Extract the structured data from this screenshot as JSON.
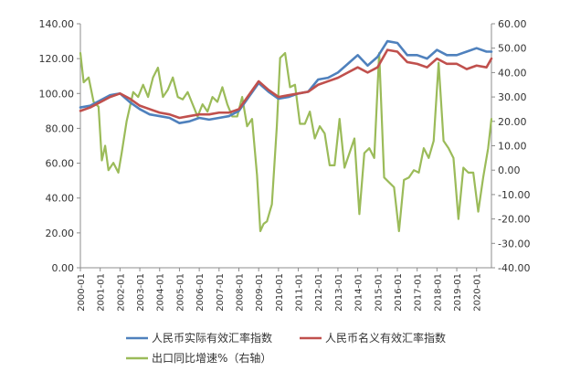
{
  "chart_data": {
    "type": "line",
    "x_start": "2000-01",
    "x_end": "2020-10",
    "x_tick_labels": [
      "2000-01",
      "2001-01",
      "2002-01",
      "2003-01",
      "2004-01",
      "2005-01",
      "2006-01",
      "2007-01",
      "2008-01",
      "2009-01",
      "2010-01",
      "2011-01",
      "2012-01",
      "2013-01",
      "2014-01",
      "2015-01",
      "2016-01",
      "2017-01",
      "2018-01",
      "2019-01",
      "2020-01"
    ],
    "left_axis": {
      "min": 0,
      "max": 140,
      "step": 20,
      "tick_labels": [
        "0.00",
        "20.00",
        "40.00",
        "60.00",
        "80.00",
        "100.00",
        "120.00",
        "140.00"
      ]
    },
    "right_axis": {
      "min": -40,
      "max": 60,
      "step": 10,
      "tick_labels": [
        "-40.00",
        "-30.00",
        "-20.00",
        "-10.00",
        "0.00",
        "10.00",
        "20.00",
        "30.00",
        "40.00",
        "50.00",
        "60.00"
      ]
    },
    "grid": false,
    "legend_position": "bottom",
    "series": [
      {
        "name": "人民币实际有效汇率指数",
        "axis": "left",
        "color": "#4f81bd",
        "points": [
          [
            "2000-01",
            92
          ],
          [
            "2000-07",
            93
          ],
          [
            "2001-01",
            96
          ],
          [
            "2001-07",
            99
          ],
          [
            "2002-01",
            100
          ],
          [
            "2002-07",
            95
          ],
          [
            "2003-01",
            91
          ],
          [
            "2003-07",
            88
          ],
          [
            "2004-01",
            87
          ],
          [
            "2004-07",
            86
          ],
          [
            "2005-01",
            83
          ],
          [
            "2005-07",
            84
          ],
          [
            "2006-01",
            86
          ],
          [
            "2006-07",
            85
          ],
          [
            "2007-01",
            86
          ],
          [
            "2007-07",
            87
          ],
          [
            "2008-01",
            90
          ],
          [
            "2008-07",
            98
          ],
          [
            "2009-01",
            106
          ],
          [
            "2009-07",
            101
          ],
          [
            "2010-01",
            97
          ],
          [
            "2010-07",
            98
          ],
          [
            "2011-01",
            100
          ],
          [
            "2011-07",
            101
          ],
          [
            "2012-01",
            108
          ],
          [
            "2012-07",
            109
          ],
          [
            "2013-01",
            112
          ],
          [
            "2013-07",
            117
          ],
          [
            "2014-01",
            122
          ],
          [
            "2014-07",
            116
          ],
          [
            "2015-01",
            121
          ],
          [
            "2015-07",
            130
          ],
          [
            "2016-01",
            129
          ],
          [
            "2016-07",
            122
          ],
          [
            "2017-01",
            122
          ],
          [
            "2017-07",
            120
          ],
          [
            "2018-01",
            125
          ],
          [
            "2018-07",
            122
          ],
          [
            "2019-01",
            122
          ],
          [
            "2019-07",
            124
          ],
          [
            "2020-01",
            126
          ],
          [
            "2020-07",
            124
          ],
          [
            "2020-10",
            124
          ]
        ]
      },
      {
        "name": "人民币名义有效汇率指数",
        "axis": "left",
        "color": "#c0504d",
        "points": [
          [
            "2000-01",
            90
          ],
          [
            "2000-07",
            92
          ],
          [
            "2001-01",
            95
          ],
          [
            "2001-07",
            98
          ],
          [
            "2002-01",
            100
          ],
          [
            "2002-07",
            97
          ],
          [
            "2003-01",
            93
          ],
          [
            "2003-07",
            91
          ],
          [
            "2004-01",
            89
          ],
          [
            "2004-07",
            88
          ],
          [
            "2005-01",
            86
          ],
          [
            "2005-07",
            87
          ],
          [
            "2006-01",
            88
          ],
          [
            "2006-07",
            88
          ],
          [
            "2007-01",
            89
          ],
          [
            "2007-07",
            89
          ],
          [
            "2008-01",
            91
          ],
          [
            "2008-07",
            99
          ],
          [
            "2009-01",
            107
          ],
          [
            "2009-07",
            102
          ],
          [
            "2010-01",
            98
          ],
          [
            "2010-07",
            99
          ],
          [
            "2011-01",
            100
          ],
          [
            "2011-07",
            101
          ],
          [
            "2012-01",
            105
          ],
          [
            "2012-07",
            107
          ],
          [
            "2013-01",
            109
          ],
          [
            "2013-07",
            112
          ],
          [
            "2014-01",
            115
          ],
          [
            "2014-07",
            112
          ],
          [
            "2015-01",
            115
          ],
          [
            "2015-07",
            125
          ],
          [
            "2016-01",
            124
          ],
          [
            "2016-07",
            118
          ],
          [
            "2017-01",
            117
          ],
          [
            "2017-07",
            115
          ],
          [
            "2018-01",
            120
          ],
          [
            "2018-07",
            117
          ],
          [
            "2019-01",
            117
          ],
          [
            "2019-07",
            114
          ],
          [
            "2020-01",
            116
          ],
          [
            "2020-07",
            115
          ],
          [
            "2020-10",
            120
          ]
        ]
      },
      {
        "name": "出口同比增速%（右轴）",
        "axis": "right",
        "color": "#9bbb59",
        "points": [
          [
            "2000-01",
            48
          ],
          [
            "2000-03",
            36
          ],
          [
            "2000-06",
            38
          ],
          [
            "2000-09",
            28
          ],
          [
            "2000-12",
            26
          ],
          [
            "2001-02",
            4
          ],
          [
            "2001-04",
            10
          ],
          [
            "2001-06",
            0
          ],
          [
            "2001-09",
            3
          ],
          [
            "2001-12",
            -1
          ],
          [
            "2002-02",
            7
          ],
          [
            "2002-05",
            20
          ],
          [
            "2002-09",
            32
          ],
          [
            "2002-12",
            30
          ],
          [
            "2003-03",
            35
          ],
          [
            "2003-06",
            30
          ],
          [
            "2003-09",
            38
          ],
          [
            "2003-12",
            42
          ],
          [
            "2004-03",
            30
          ],
          [
            "2004-06",
            33
          ],
          [
            "2004-09",
            38
          ],
          [
            "2004-12",
            30
          ],
          [
            "2005-03",
            29
          ],
          [
            "2005-06",
            32
          ],
          [
            "2005-09",
            27
          ],
          [
            "2005-12",
            22
          ],
          [
            "2006-03",
            27
          ],
          [
            "2006-06",
            24
          ],
          [
            "2006-09",
            30
          ],
          [
            "2006-12",
            28
          ],
          [
            "2007-03",
            34
          ],
          [
            "2007-06",
            27
          ],
          [
            "2007-09",
            22
          ],
          [
            "2007-12",
            22
          ],
          [
            "2008-03",
            30
          ],
          [
            "2008-06",
            18
          ],
          [
            "2008-09",
            21
          ],
          [
            "2008-12",
            -2
          ],
          [
            "2009-02",
            -25
          ],
          [
            "2009-04",
            -22
          ],
          [
            "2009-06",
            -21
          ],
          [
            "2009-09",
            -14
          ],
          [
            "2009-12",
            18
          ],
          [
            "2010-02",
            46
          ],
          [
            "2010-05",
            48
          ],
          [
            "2010-08",
            34
          ],
          [
            "2010-11",
            35
          ],
          [
            "2011-02",
            19
          ],
          [
            "2011-05",
            19
          ],
          [
            "2011-08",
            24
          ],
          [
            "2011-11",
            13
          ],
          [
            "2012-02",
            18
          ],
          [
            "2012-05",
            15
          ],
          [
            "2012-08",
            2
          ],
          [
            "2012-11",
            2
          ],
          [
            "2013-02",
            21
          ],
          [
            "2013-05",
            1
          ],
          [
            "2013-08",
            7
          ],
          [
            "2013-11",
            13
          ],
          [
            "2014-02",
            -18
          ],
          [
            "2014-05",
            7
          ],
          [
            "2014-08",
            9
          ],
          [
            "2014-11",
            5
          ],
          [
            "2015-02",
            48
          ],
          [
            "2015-05",
            -3
          ],
          [
            "2015-08",
            -5
          ],
          [
            "2015-11",
            -7
          ],
          [
            "2016-02",
            -25
          ],
          [
            "2016-05",
            -4
          ],
          [
            "2016-08",
            -3
          ],
          [
            "2016-11",
            0
          ],
          [
            "2017-02",
            -1
          ],
          [
            "2017-05",
            9
          ],
          [
            "2017-08",
            5
          ],
          [
            "2017-11",
            12
          ],
          [
            "2018-02",
            44
          ],
          [
            "2018-05",
            12
          ],
          [
            "2018-08",
            9
          ],
          [
            "2018-11",
            5
          ],
          [
            "2019-02",
            -20
          ],
          [
            "2019-05",
            1
          ],
          [
            "2019-08",
            -1
          ],
          [
            "2019-11",
            -1
          ],
          [
            "2020-02",
            -17
          ],
          [
            "2020-05",
            -3
          ],
          [
            "2020-08",
            9
          ],
          [
            "2020-10",
            21
          ]
        ]
      }
    ]
  }
}
